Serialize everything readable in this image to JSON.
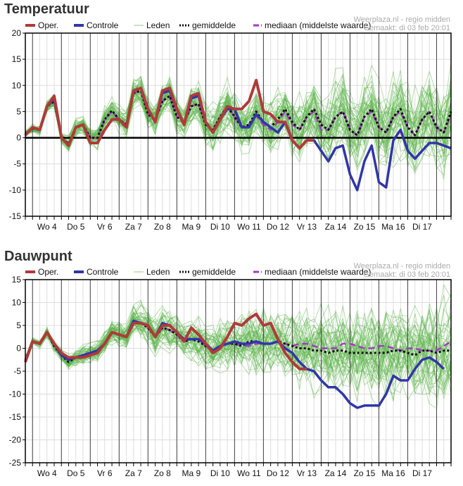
{
  "colors": {
    "oper": "#b03a3a",
    "controle": "#3136a8",
    "leden": "#5ab34a",
    "leden_legend": "#b9d7b3",
    "gemiddelde": "#111111",
    "mediaan": "#a23bc4",
    "grid_light": "#dddddd",
    "grid_day": "#444444"
  },
  "source": {
    "line1": "Weerplaza.nl - regio midden",
    "line2": "Gemaakt: di 03 feb 20:01"
  },
  "legend": {
    "oper": "Oper.",
    "controle": "Controle",
    "leden": "Leden",
    "gemiddelde": "gemiddelde",
    "mediaan": "mediaan (middelste waarde)"
  },
  "chart_data": [
    {
      "type": "line",
      "title": "Temperatuur",
      "xlabel": "",
      "ylabel": "",
      "ylim": [
        -15,
        20
      ],
      "yticks": [
        20,
        15,
        10,
        5,
        0,
        -5,
        -10,
        -15
      ],
      "step_hours": 6,
      "day_labels": [
        "Wo 4",
        "Do 5",
        "Vr 6",
        "Za 7",
        "Zo 8",
        "Ma 9",
        "Di 10",
        "Wo 11",
        "Do 12",
        "Vr 13",
        "Za 14",
        "Zo 15",
        "Ma 16",
        "Di 17"
      ],
      "grid": true,
      "legend_position": "top",
      "series": [
        {
          "name": "Oper.",
          "values": [
            0.5,
            2,
            1.5,
            6,
            8,
            0,
            -1.5,
            2,
            2.5,
            -1,
            -1,
            1.5,
            3.5,
            3.5,
            2,
            9,
            9.5,
            5.5,
            3,
            9,
            9.5,
            5.5,
            2.5,
            8,
            8.5,
            3,
            1,
            3.5,
            6,
            5.5,
            5.5,
            7,
            11,
            5,
            4.5,
            3,
            3,
            -0.5,
            -2,
            -0.5,
            -0.5
          ]
        },
        {
          "name": "Controle",
          "values": [
            0.5,
            2,
            1.5,
            6,
            7.5,
            0,
            -1.5,
            2,
            2.5,
            -1,
            -1,
            1.5,
            3.5,
            3.5,
            2,
            9,
            9.5,
            5.5,
            3,
            8.5,
            9,
            5.5,
            2.5,
            7.5,
            8,
            3,
            1,
            3.5,
            5.5,
            5.5,
            2,
            2,
            4.5,
            3,
            2,
            1,
            3,
            -0.5,
            -2,
            -0.5,
            -0.5,
            -2.5,
            -4.5,
            -2,
            -1.5,
            -7,
            -10,
            -4.5,
            -1.5,
            -8.5,
            -9.5,
            -0.5,
            1.5,
            -2.5,
            -4,
            -2.5,
            -1,
            -1,
            -1.5,
            -2
          ]
        },
        {
          "name": "gemiddelde",
          "values": [
            0.8,
            1.8,
            1.5,
            6,
            7,
            0,
            -1.2,
            2,
            2.5,
            0,
            0,
            3.5,
            5.2,
            3.5,
            2.5,
            8.5,
            9,
            4.5,
            3.5,
            7,
            8,
            4,
            3,
            6,
            6.5,
            2.5,
            1.5,
            4,
            6,
            4,
            2,
            2.5,
            5,
            3,
            2,
            3.5,
            5.5,
            3,
            1.5,
            4,
            5.5,
            2.5,
            1.5,
            4,
            5,
            1.5,
            0.5,
            4,
            5.5,
            2,
            1,
            4,
            5.5,
            2,
            0.5,
            3.5,
            5,
            2,
            1,
            5
          ]
        },
        {
          "name": "mediaan (middelste waarde)",
          "values": [
            0.8,
            1.8,
            1.5,
            6,
            7,
            0,
            -1.2,
            2,
            2.5,
            0,
            0,
            3.5,
            5,
            3.5,
            2.5,
            8.5,
            9,
            4.5,
            3.5,
            7,
            8,
            4,
            3,
            6,
            6.5,
            2.5,
            1.5,
            4,
            6,
            4,
            2,
            2.5,
            4.2,
            2.5,
            1.5,
            3,
            5,
            2.5,
            1.5,
            4,
            5,
            1.5,
            1.5,
            4,
            5,
            1.5,
            0.5,
            4,
            5,
            2,
            1,
            4,
            5,
            2,
            0.5,
            3.5,
            5,
            2,
            1,
            4.5
          ]
        }
      ]
    },
    {
      "type": "line",
      "title": "Dauwpunt",
      "xlabel": "",
      "ylabel": "",
      "ylim": [
        -25,
        15
      ],
      "yticks": [
        15,
        10,
        5,
        0,
        -5,
        -10,
        -15,
        -20,
        -25
      ],
      "step_hours": 6,
      "day_labels": [
        "Wo 4",
        "Do 5",
        "Vr 6",
        "Za 7",
        "Zo 8",
        "Ma 9",
        "Di 10",
        "Wo 11",
        "Do 12",
        "Vr 13",
        "Za 14",
        "Zo 15",
        "Ma 16",
        "Di 17"
      ],
      "grid": true,
      "legend_position": "top",
      "series": [
        {
          "name": "Oper.",
          "values": [
            -3,
            1.5,
            1,
            3.5,
            1,
            -1,
            -2,
            -2,
            -2,
            -1.5,
            -1,
            1,
            3.5,
            3,
            2.5,
            5.5,
            5.5,
            5,
            2.5,
            5,
            5,
            3.5,
            1.5,
            4.5,
            3,
            1,
            -1,
            0,
            2.5,
            5.5,
            5,
            6.5,
            7.5,
            5,
            5.5,
            2,
            -1,
            -3,
            -4.5,
            -4.5
          ]
        },
        {
          "name": "Controle",
          "values": [
            -3,
            1.5,
            1,
            3.5,
            1,
            -1.5,
            -2.5,
            -2,
            -1.5,
            -1,
            -0.5,
            1,
            3.5,
            3,
            2.5,
            6,
            5.5,
            5,
            2.5,
            5.5,
            5,
            3.5,
            2,
            2,
            2,
            1,
            -0.5,
            0.5,
            1,
            1.5,
            1,
            1,
            1.5,
            1,
            1,
            1.5,
            0,
            -1,
            -3,
            -4.5,
            -5,
            -7,
            -8.5,
            -8.5,
            -10,
            -12,
            -13,
            -12.5,
            -12.5,
            -12.5,
            -10,
            -6,
            -7,
            -7,
            -4.5,
            -2.5,
            -2,
            -3,
            -4.5
          ]
        },
        {
          "name": "gemiddelde",
          "values": [
            -2.5,
            1.5,
            1,
            3.5,
            0.5,
            -1.5,
            -3,
            -2,
            -1.5,
            -1,
            -0.5,
            1,
            3.5,
            3,
            2.5,
            6,
            5.5,
            4.5,
            2.5,
            4.5,
            4,
            3,
            1.5,
            2,
            1.5,
            0.5,
            -0.5,
            0.5,
            1,
            1,
            0.5,
            1.5,
            1.5,
            1,
            1,
            1.5,
            1,
            0.5,
            0,
            0,
            -0.5,
            -0.5,
            -1,
            -0.5,
            -0.5,
            -1,
            -1,
            -1,
            -1,
            -1,
            -1,
            -0.5,
            -0.5,
            -1,
            -1.5,
            -0.5,
            -0.5,
            -1,
            -0.5,
            -0.5
          ]
        },
        {
          "name": "mediaan (middelste waarde)",
          "values": [
            -2.5,
            1.5,
            1,
            3.5,
            0.5,
            -1.5,
            -2.5,
            -2,
            -1.5,
            -1,
            -0.5,
            1,
            3.5,
            3,
            2.5,
            6,
            5.5,
            4.5,
            2.5,
            4.5,
            4,
            3,
            1.5,
            2,
            2,
            0.5,
            -0.5,
            0.5,
            1,
            1,
            0.5,
            0.5,
            1,
            1,
            1,
            1.5,
            1,
            0.5,
            1,
            1,
            0.5,
            0,
            0,
            0,
            1,
            1,
            0.5,
            0,
            0,
            0.5,
            0.5,
            0,
            -0.5,
            0,
            0,
            -0.5,
            -0.5,
            -0.5,
            0.5,
            1.5
          ]
        }
      ]
    }
  ]
}
